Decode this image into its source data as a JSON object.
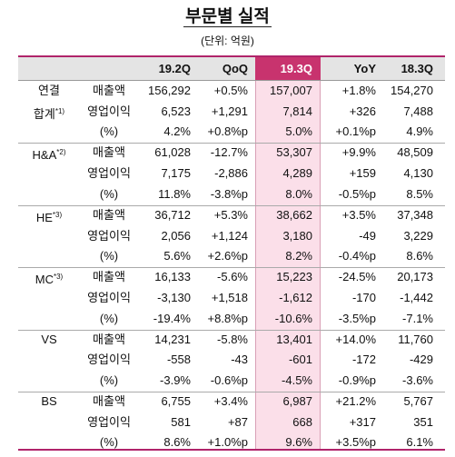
{
  "title": "부문별 실적",
  "unit": "(단위: 억원)",
  "table": {
    "columns": [
      "19.2Q",
      "QoQ",
      "19.3Q",
      "YoY",
      "18.3Q"
    ],
    "segments": [
      {
        "label": "연결",
        "label2": "합계",
        "note": "*1)",
        "rows": [
          {
            "item": "매출액",
            "cells": [
              "156,292",
              "+0.5%",
              "157,007",
              "+1.8%",
              "154,270"
            ]
          },
          {
            "item": "영업이익",
            "cells": [
              "6,523",
              "+1,291",
              "7,814",
              "+326",
              "7,488"
            ]
          },
          {
            "item": "(%)",
            "cells": [
              "4.2%",
              "+0.8%p",
              "5.0%",
              "+0.1%p",
              "4.9%"
            ]
          }
        ]
      },
      {
        "label": "H&A",
        "note": "*2)",
        "rows": [
          {
            "item": "매출액",
            "cells": [
              "61,028",
              "-12.7%",
              "53,307",
              "+9.9%",
              "48,509"
            ]
          },
          {
            "item": "영업이익",
            "cells": [
              "7,175",
              "-2,886",
              "4,289",
              "+159",
              "4,130"
            ]
          },
          {
            "item": "(%)",
            "cells": [
              "11.8%",
              "-3.8%p",
              "8.0%",
              "-0.5%p",
              "8.5%"
            ]
          }
        ]
      },
      {
        "label": "HE",
        "note": "*3)",
        "rows": [
          {
            "item": "매출액",
            "cells": [
              "36,712",
              "+5.3%",
              "38,662",
              "+3.5%",
              "37,348"
            ]
          },
          {
            "item": "영업이익",
            "cells": [
              "2,056",
              "+1,124",
              "3,180",
              "-49",
              "3,229"
            ]
          },
          {
            "item": "(%)",
            "cells": [
              "5.6%",
              "+2.6%p",
              "8.2%",
              "-0.4%p",
              "8.6%"
            ]
          }
        ]
      },
      {
        "label": "MC",
        "note": "*3)",
        "rows": [
          {
            "item": "매출액",
            "cells": [
              "16,133",
              "-5.6%",
              "15,223",
              "-24.5%",
              "20,173"
            ]
          },
          {
            "item": "영업이익",
            "cells": [
              "-3,130",
              "+1,518",
              "-1,612",
              "-170",
              "-1,442"
            ]
          },
          {
            "item": "(%)",
            "cells": [
              "-19.4%",
              "+8.8%p",
              "-10.6%",
              "-3.5%p",
              "-7.1%"
            ]
          }
        ]
      },
      {
        "label": "VS",
        "rows": [
          {
            "item": "매출액",
            "cells": [
              "14,231",
              "-5.8%",
              "13,401",
              "+14.0%",
              "11,760"
            ]
          },
          {
            "item": "영업이익",
            "cells": [
              "-558",
              "-43",
              "-601",
              "-172",
              "-429"
            ]
          },
          {
            "item": "(%)",
            "cells": [
              "-3.9%",
              "-0.6%p",
              "-4.5%",
              "-0.9%p",
              "-3.6%"
            ]
          }
        ]
      },
      {
        "label": "BS",
        "rows": [
          {
            "item": "매출액",
            "cells": [
              "6,755",
              "+3.4%",
              "6,987",
              "+21.2%",
              "5,767"
            ]
          },
          {
            "item": "영업이익",
            "cells": [
              "581",
              "+87",
              "668",
              "+317",
              "351"
            ]
          },
          {
            "item": "(%)",
            "cells": [
              "8.6%",
              "+1.0%p",
              "9.6%",
              "+3.5%p",
              "6.1%"
            ]
          }
        ]
      }
    ]
  }
}
